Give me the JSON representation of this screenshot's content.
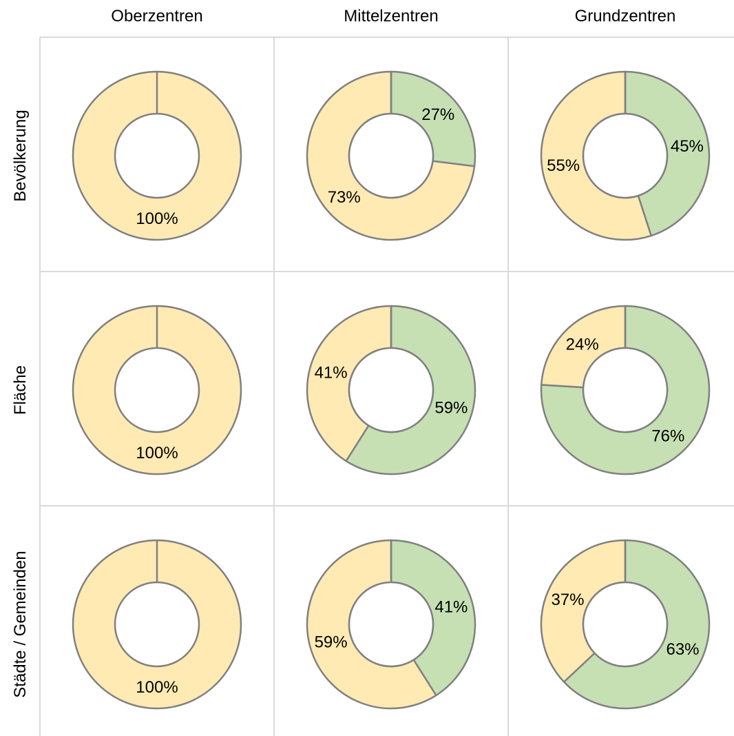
{
  "colors": {
    "yellow": "#ffeab3",
    "green": "#c6e0b4",
    "outline": "#808080",
    "grid": "#d9d9d9"
  },
  "chart_data": {
    "type": "pie",
    "subtype": "donut-small-multiples",
    "columns": [
      "Oberzentren",
      "Mittelzentren",
      "Grundzentren"
    ],
    "rows": [
      "Bevölkerung",
      "Fläche",
      "Städte / Gemeinden"
    ],
    "grid": true,
    "cells": [
      [
        {
          "green": 0,
          "yellow": 100,
          "green_label": "",
          "yellow_label": "100%"
        },
        {
          "green": 27,
          "yellow": 73,
          "green_label": "27%",
          "yellow_label": "73%"
        },
        {
          "green": 45,
          "yellow": 55,
          "green_label": "45%",
          "yellow_label": "55%"
        }
      ],
      [
        {
          "green": 0,
          "yellow": 100,
          "green_label": "",
          "yellow_label": "100%"
        },
        {
          "green": 59,
          "yellow": 41,
          "green_label": "59%",
          "yellow_label": "41%"
        },
        {
          "green": 76,
          "yellow": 24,
          "green_label": "76%",
          "yellow_label": "24%"
        }
      ],
      [
        {
          "green": 0,
          "yellow": 100,
          "green_label": "",
          "yellow_label": "100%"
        },
        {
          "green": 41,
          "yellow": 59,
          "green_label": "41%",
          "yellow_label": "59%"
        },
        {
          "green": 63,
          "yellow": 37,
          "green_label": "63%",
          "yellow_label": "37%"
        }
      ]
    ]
  }
}
